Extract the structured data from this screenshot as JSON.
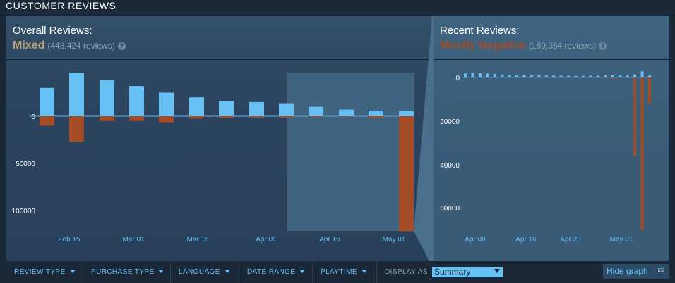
{
  "section": {
    "title": "CUSTOMER REVIEWS"
  },
  "overall": {
    "label": "Overall Reviews:",
    "verdict": "Mixed",
    "verdict_color": "#b9a074",
    "count": "(448,424 reviews)",
    "help": "?"
  },
  "recent": {
    "label": "Recent Reviews:",
    "verdict": "Mostly Negative",
    "verdict_color": "#a34c25",
    "count": "(169,354 reviews)",
    "help": "?"
  },
  "colors": {
    "positive": "#66c0f4",
    "negative": "#a34c25",
    "axis_text": "#ffffff",
    "date_text": "#66c0f4"
  },
  "chart_data": [
    {
      "type": "bar",
      "title": "",
      "x_ticks": [
        "Feb 15",
        "Mar 01",
        "Mar 16",
        "Apr 01",
        "Apr 16",
        "May 01"
      ],
      "y_ticks": [
        "0",
        "50000",
        "100000"
      ],
      "highlight": "recent range (from early Apr)",
      "series": [
        {
          "values": [
            30000,
            46000,
            38000,
            32000,
            25000,
            20000,
            16000,
            15000,
            13000,
            10000,
            7000,
            6000,
            5500
          ]
        },
        {
          "values": [
            -10000,
            -27000,
            -5000,
            -5000,
            -7000,
            -2500,
            -2000,
            -1500,
            -1500,
            -1000,
            -500,
            -2000,
            -122000
          ]
        }
      ]
    },
    {
      "type": "bar",
      "title": "",
      "x_ticks": [
        "Apr 08",
        "Apr 16",
        "Apr 23",
        "May 01"
      ],
      "y_ticks": [
        "0",
        "20000",
        "40000",
        "60000"
      ],
      "series": [
        {
          "values": [
            1800,
            2000,
            1900,
            1800,
            1600,
            1400,
            1300,
            1200,
            1100,
            1000,
            1000,
            900,
            900,
            800,
            800,
            700,
            700,
            800,
            800,
            900,
            1000,
            1200,
            900,
            1500,
            2800,
            900
          ]
        },
        {
          "values": [
            -100,
            -100,
            -100,
            -100,
            -100,
            -100,
            -100,
            -100,
            -100,
            -100,
            -100,
            -100,
            -100,
            -100,
            -100,
            -100,
            -100,
            -100,
            -100,
            -500,
            -800,
            -300,
            -100,
            -36000,
            -70000,
            -12000
          ]
        }
      ]
    }
  ],
  "filters": {
    "review_type": "REVIEW TYPE",
    "purchase_type": "PURCHASE TYPE",
    "language": "LANGUAGE",
    "date_range": "DATE RANGE",
    "playtime": "PLAYTIME",
    "display_as": "DISPLAY AS:",
    "display_value": "Summary",
    "hide_graph": "Hide graph"
  }
}
